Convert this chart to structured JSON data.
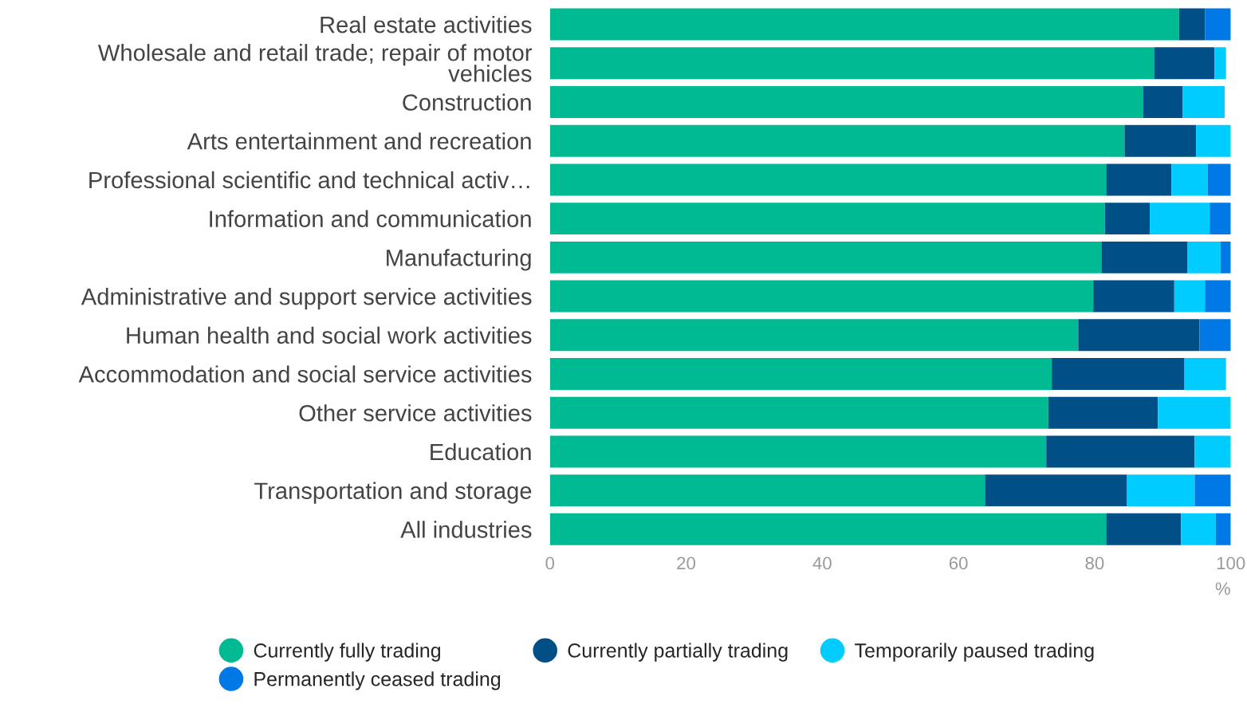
{
  "chart_data": {
    "type": "bar",
    "orientation": "horizontal",
    "stacked": true,
    "xlabel": "%",
    "categories": [
      "Real estate activities",
      "Wholesale and retail trade; repair of motor\nvehicles",
      "Construction",
      "Arts entertainment and recreation",
      "Professional scientific and technical activ…",
      "Information and communication",
      "Manufacturing",
      "Administrative and support service activities",
      "Human health and social work activities",
      "Accommodation and social service activities",
      "Other service activities",
      "Education",
      "Transportation and storage",
      "All industries"
    ],
    "series": [
      {
        "name": "Currently fully trading",
        "color": "#00ba93",
        "values": [
          92.4,
          88.8,
          87.1,
          84.4,
          81.7,
          81.5,
          81.0,
          79.8,
          77.6,
          73.7,
          73.2,
          72.9,
          63.9,
          81.7
        ]
      },
      {
        "name": "Currently partially trading",
        "color": "#004f86",
        "values": [
          3.8,
          8.8,
          5.8,
          10.5,
          9.6,
          6.6,
          12.6,
          11.9,
          17.8,
          19.5,
          16.1,
          21.8,
          20.8,
          11.0
        ]
      },
      {
        "name": "Temporarily paused trading",
        "color": "#00ccff",
        "values": [
          0,
          1.7,
          6.2,
          5.1,
          5.3,
          8.8,
          4.9,
          4.5,
          0,
          6.1,
          10.7,
          5.3,
          10.0,
          5.1
        ]
      },
      {
        "name": "Permanently ceased trading",
        "color": "#0079e6",
        "values": [
          3.8,
          0,
          0,
          0,
          3.4,
          3.1,
          1.5,
          3.8,
          4.6,
          0,
          0,
          0,
          5.3,
          2.2
        ]
      }
    ],
    "xlim": [
      0,
      100
    ],
    "xticks": [
      0,
      20,
      40,
      60,
      80,
      100
    ],
    "grid": false,
    "legend": "bottom"
  }
}
